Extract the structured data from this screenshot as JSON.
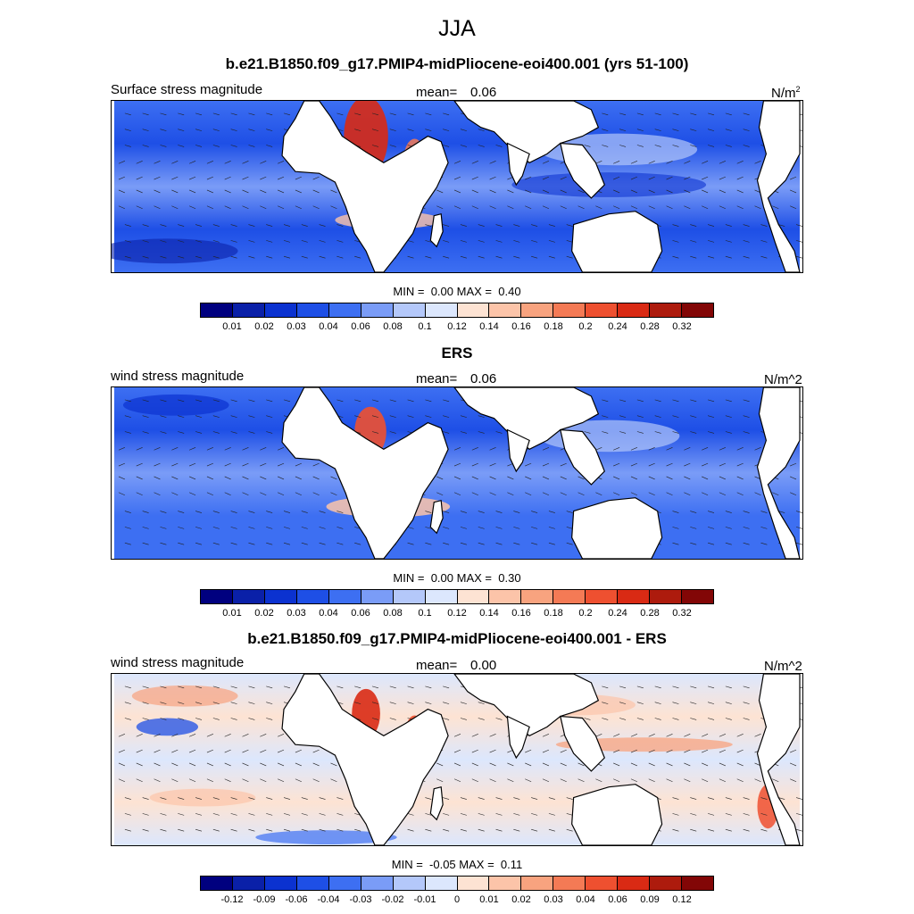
{
  "title": "JJA",
  "colors": {
    "seq": [
      "#00007f",
      "#0a20a8",
      "#0b32d0",
      "#1e4fe6",
      "#3d6ff2",
      "#7a9cf7",
      "#b4c8fa",
      "#dce7fd",
      "#fde3d3",
      "#fcc4a9",
      "#f8a37f",
      "#f47a55",
      "#ee5030",
      "#d92a14",
      "#ad1b0d",
      "#820606"
    ],
    "land": "#ffffff",
    "coast": "#000000"
  },
  "panels": [
    {
      "title": "b.e21.B1850.f09_g17.PMIP4-midPliocene-eoi400.001 (yrs 51-100)",
      "left_label": "Surface stress magnitude",
      "mean_label": "mean=",
      "mean_value": "0.06",
      "units_base": "N/m",
      "units_sup": "2",
      "min_label": "MIN =",
      "min_value": "0.00",
      "max_label": "MAX =",
      "max_value": "0.40",
      "ticks": [
        "0.01",
        "0.02",
        "0.03",
        "0.04",
        "0.06",
        "0.08",
        "0.1",
        "0.12",
        "0.14",
        "0.16",
        "0.18",
        "0.2",
        "0.24",
        "0.28",
        "0.32"
      ]
    },
    {
      "title": "ERS",
      "left_label": "wind stress magnitude",
      "mean_label": "mean=",
      "mean_value": "0.06",
      "units_base": "N/m^2",
      "units_sup": "",
      "min_label": "MIN =",
      "min_value": "0.00",
      "max_label": "MAX =",
      "max_value": "0.30",
      "ticks": [
        "0.01",
        "0.02",
        "0.03",
        "0.04",
        "0.06",
        "0.08",
        "0.1",
        "0.12",
        "0.14",
        "0.16",
        "0.18",
        "0.2",
        "0.24",
        "0.28",
        "0.32"
      ]
    },
    {
      "title": "b.e21.B1850.f09_g17.PMIP4-midPliocene-eoi400.001 - ERS",
      "left_label": "wind stress magnitude",
      "mean_label": "mean=",
      "mean_value": "0.00",
      "units_base": "N/m^2",
      "units_sup": "",
      "min_label": "MIN =",
      "min_value": "-0.05",
      "max_label": "MAX =",
      "max_value": "0.11",
      "ticks": [
        "-0.12",
        "-0.09",
        "-0.06",
        "-0.04",
        "-0.03",
        "-0.02",
        "-0.01",
        "0",
        "0.01",
        "0.02",
        "0.03",
        "0.04",
        "0.06",
        "0.09",
        "0.12"
      ]
    }
  ]
}
